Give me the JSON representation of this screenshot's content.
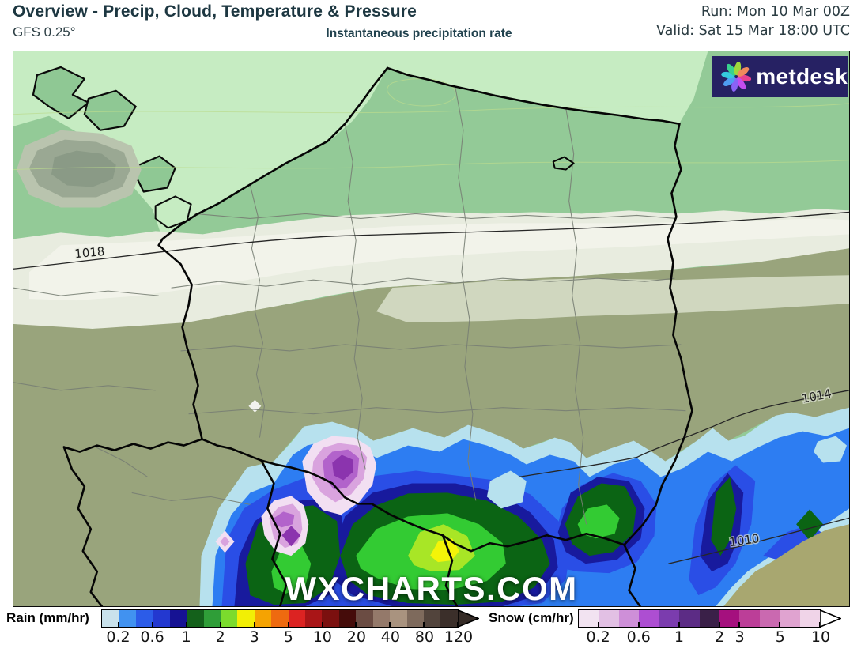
{
  "header": {
    "title": "Overview - Precip, Cloud, Temperature & Pressure",
    "model": "GFS 0.25°",
    "subtitle": "Instantaneous precipitation rate",
    "run": "Run: Mon 10 Mar 00Z",
    "valid": "Valid: Sat 15 Mar 18:00 UTC",
    "title_color": "#1d3741"
  },
  "map": {
    "watermark": "WXCHARTS.COM",
    "isobars": [
      {
        "label": "1018"
      },
      {
        "label": "1014"
      },
      {
        "label": "1010"
      }
    ],
    "logo": {
      "text": "metdesk",
      "bg_color": "#262163",
      "petal_colors": [
        "#e8418f",
        "#c44df0",
        "#8a63f5",
        "#4f9df2",
        "#35c9dd",
        "#38d18e",
        "#9ed63c",
        "#f08a5c"
      ]
    },
    "colors": {
      "sea": "#c6ecc2",
      "land_north": "#93ca97",
      "cloud_band": "#e8ecdf",
      "olive_land": "#99a47c",
      "khaki_land": "#a8a770",
      "rain_light": "#b7e1ee",
      "rain_blue": "#2d7df2",
      "rain_royal": "#2a4ee6",
      "rain_navy": "#181a9d",
      "rain_dkgreen": "#0b6414",
      "rain_green": "#33cb33",
      "rain_yellow": "#f4f408",
      "snow_pale": "#f2dff2",
      "snow_orchid": "#d9a3de",
      "snow_purple": "#b263cb",
      "snow_dark": "#8b34ae"
    }
  },
  "legend": {
    "rain": {
      "label": "Rain (mm/hr)",
      "unit_values": [
        "0.2",
        "0.6",
        "1",
        "2",
        "3",
        "5",
        "10",
        "20",
        "40",
        "80",
        "120"
      ],
      "colors": [
        "#c9e2ec",
        "#4192f0",
        "#2c5ce8",
        "#2338d0",
        "#161293",
        "#14611b",
        "#2f9e38",
        "#7bdb2d",
        "#f2ef05",
        "#f5a302",
        "#ee6a10",
        "#dc2322",
        "#a91517",
        "#7b100f",
        "#450c0a",
        "#6b4c43",
        "#94796a",
        "#a9937f",
        "#7e6a5c",
        "#52443c",
        "#3b2f2a"
      ],
      "tick_boundaries": [
        1,
        3,
        5,
        7,
        9,
        11,
        13,
        15,
        17,
        19,
        21
      ],
      "arrow_color": "#352b26"
    },
    "snow": {
      "label": "Snow (cm/hr)",
      "unit_values": [
        "0.2",
        "0.6",
        "1",
        "2",
        "3",
        "5",
        "10"
      ],
      "colors": [
        "#f2e3f1",
        "#e2c0e4",
        "#ce8fd8",
        "#ad4ed2",
        "#7b3cae",
        "#5c2c85",
        "#3a2048",
        "#a5107e",
        "#bc3e98",
        "#ca69b0",
        "#e0a3d0",
        "#f0d4e8"
      ],
      "tick_boundaries": [
        1,
        3,
        5,
        7,
        8,
        10,
        12
      ],
      "arrow_color": "#ffffff"
    }
  }
}
